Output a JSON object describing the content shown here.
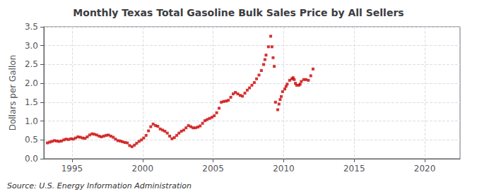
{
  "chart_data": {
    "type": "scatter",
    "title": "Monthly Texas Total Gasoline Bulk Sales Price by All Sellers",
    "ylabel": "Dollars per Gallon",
    "annotations": [
      "Source: U.S. Energy Information Administration"
    ],
    "color": "#cc0000",
    "marker": "square",
    "grid": true,
    "xlim": [
      1993.0,
      2022.5
    ],
    "ylim": [
      0.0,
      3.5
    ],
    "xticks": [
      1995,
      2000,
      2005,
      2010,
      2015,
      2020
    ],
    "yticks": [
      {
        "value": 0.0,
        "label": "0.0"
      },
      0.5,
      {
        "value": 1.0,
        "label": "1.0"
      },
      1.5,
      {
        "value": 2.0,
        "label": "2.0"
      },
      2.5,
      {
        "value": 3.0,
        "label": "3.0"
      },
      3.5
    ],
    "x": [
      1993.25,
      1993.42,
      1993.58,
      1993.75,
      1993.92,
      1994.08,
      1994.25,
      1994.42,
      1994.58,
      1994.75,
      1994.92,
      1995.08,
      1995.25,
      1995.42,
      1995.58,
      1995.75,
      1995.92,
      1996.08,
      1996.25,
      1996.42,
      1996.58,
      1996.75,
      1996.92,
      1997.08,
      1997.25,
      1997.42,
      1997.58,
      1997.75,
      1997.92,
      1998.08,
      1998.25,
      1998.42,
      1998.58,
      1998.75,
      1998.92,
      1999.08,
      1999.25,
      1999.42,
      1999.58,
      1999.75,
      1999.92,
      2000.08,
      2000.25,
      2000.42,
      2000.58,
      2000.75,
      2000.92,
      2001.08,
      2001.25,
      2001.42,
      2001.58,
      2001.75,
      2001.92,
      2002.08,
      2002.25,
      2002.42,
      2002.58,
      2002.75,
      2002.92,
      2003.08,
      2003.25,
      2003.42,
      2003.58,
      2003.75,
      2003.92,
      2004.08,
      2004.25,
      2004.42,
      2004.58,
      2004.75,
      2004.92,
      2005.08,
      2005.25,
      2005.42,
      2005.58,
      2005.75,
      2005.92,
      2006.08,
      2006.25,
      2006.42,
      2006.58,
      2006.75,
      2006.92,
      2007.08,
      2007.25,
      2007.42,
      2007.58,
      2007.75,
      2007.92,
      2008.08,
      2008.25,
      2008.42,
      2008.58,
      2008.67,
      2008.75,
      2008.92,
      2009.08,
      2009.17,
      2009.25,
      2009.33,
      2009.42,
      2009.58,
      2009.67,
      2009.75,
      2009.83,
      2009.92,
      2010.08,
      2010.17,
      2010.25,
      2010.42,
      2010.58,
      2010.67,
      2010.75,
      2010.83,
      2010.92,
      2011.08,
      2011.17,
      2011.25,
      2011.42,
      2011.58,
      2011.75,
      2011.92,
      2012.08
    ],
    "values": [
      0.42,
      0.44,
      0.46,
      0.48,
      0.47,
      0.46,
      0.47,
      0.5,
      0.52,
      0.51,
      0.53,
      0.52,
      0.55,
      0.58,
      0.57,
      0.55,
      0.54,
      0.58,
      0.63,
      0.66,
      0.65,
      0.63,
      0.6,
      0.58,
      0.6,
      0.62,
      0.63,
      0.6,
      0.57,
      0.52,
      0.48,
      0.47,
      0.45,
      0.43,
      0.42,
      0.35,
      0.32,
      0.36,
      0.41,
      0.46,
      0.5,
      0.55,
      0.62,
      0.74,
      0.85,
      0.92,
      0.88,
      0.86,
      0.79,
      0.76,
      0.73,
      0.68,
      0.6,
      0.53,
      0.56,
      0.62,
      0.68,
      0.73,
      0.76,
      0.82,
      0.88,
      0.85,
      0.82,
      0.82,
      0.84,
      0.87,
      0.94,
      1.01,
      1.04,
      1.07,
      1.1,
      1.14,
      1.22,
      1.34,
      1.5,
      1.52,
      1.53,
      1.55,
      1.63,
      1.72,
      1.76,
      1.72,
      1.68,
      1.66,
      1.74,
      1.82,
      1.88,
      1.95,
      2.02,
      2.12,
      2.22,
      2.34,
      2.5,
      2.63,
      2.75,
      2.97,
      3.25,
      2.97,
      2.68,
      2.45,
      1.5,
      1.3,
      1.45,
      1.57,
      1.65,
      1.78,
      1.85,
      1.92,
      1.98,
      2.08,
      2.12,
      2.15,
      2.1,
      2.0,
      1.95,
      1.95,
      1.98,
      2.05,
      2.1,
      2.1,
      2.08,
      2.2,
      2.38
    ]
  }
}
